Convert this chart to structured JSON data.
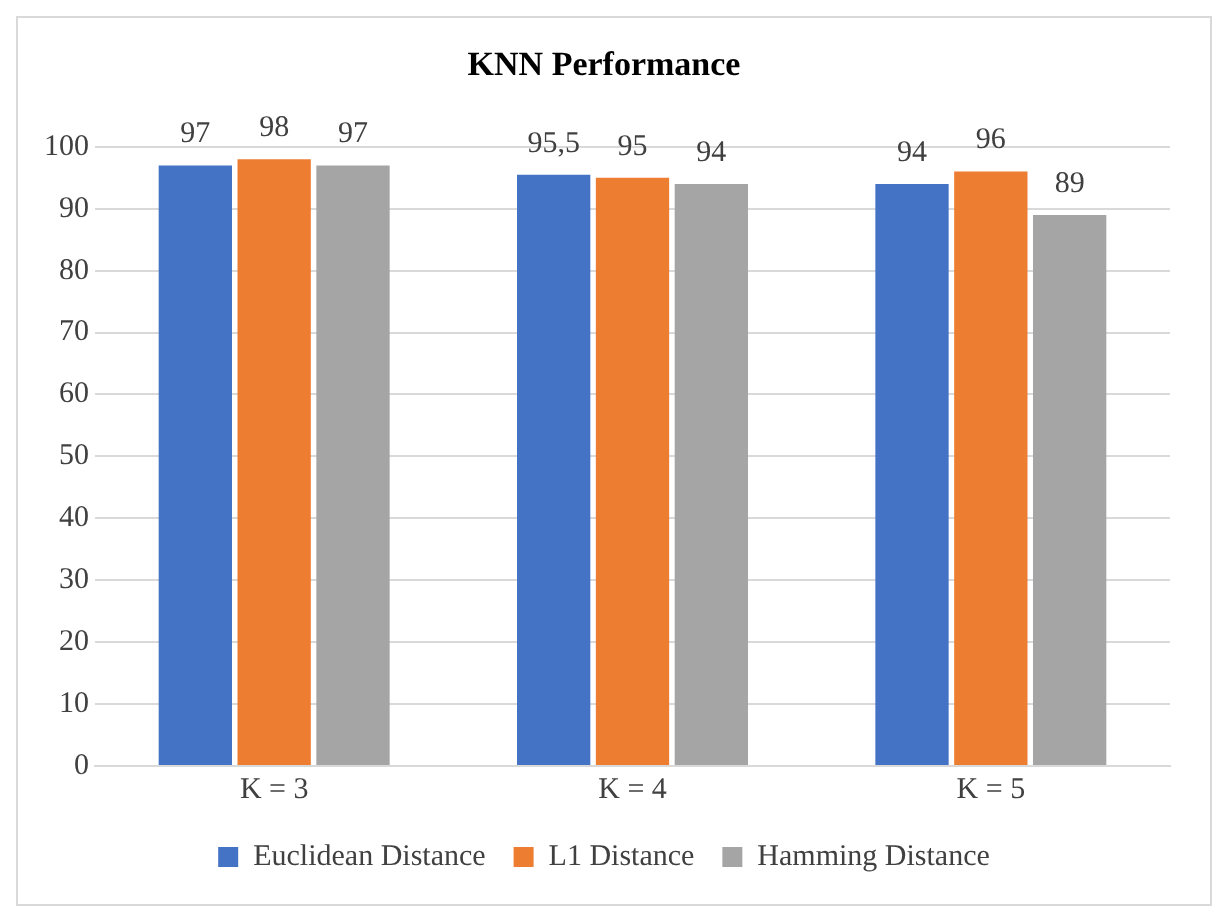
{
  "chart_data": {
    "type": "bar",
    "title": "KNN Performance",
    "categories": [
      "K = 3",
      "K = 4",
      "K = 5"
    ],
    "series": [
      {
        "name": "Euclidean Distance",
        "color": "#4472c4",
        "values": [
          97,
          95.5,
          94
        ],
        "value_labels": [
          "97",
          "95,5",
          "94"
        ]
      },
      {
        "name": "L1 Distance",
        "color": "#ed7d31",
        "values": [
          98,
          95,
          96
        ],
        "value_labels": [
          "98",
          "95",
          "96"
        ]
      },
      {
        "name": "Hamming Distance",
        "color": "#a5a5a5",
        "values": [
          97,
          94,
          89
        ],
        "value_labels": [
          "97",
          "94",
          "89"
        ]
      }
    ],
    "ylim": [
      0,
      100
    ],
    "yticks": [
      0,
      10,
      20,
      30,
      40,
      50,
      60,
      70,
      80,
      90,
      100
    ],
    "grid": "y",
    "legend": "bottom"
  }
}
